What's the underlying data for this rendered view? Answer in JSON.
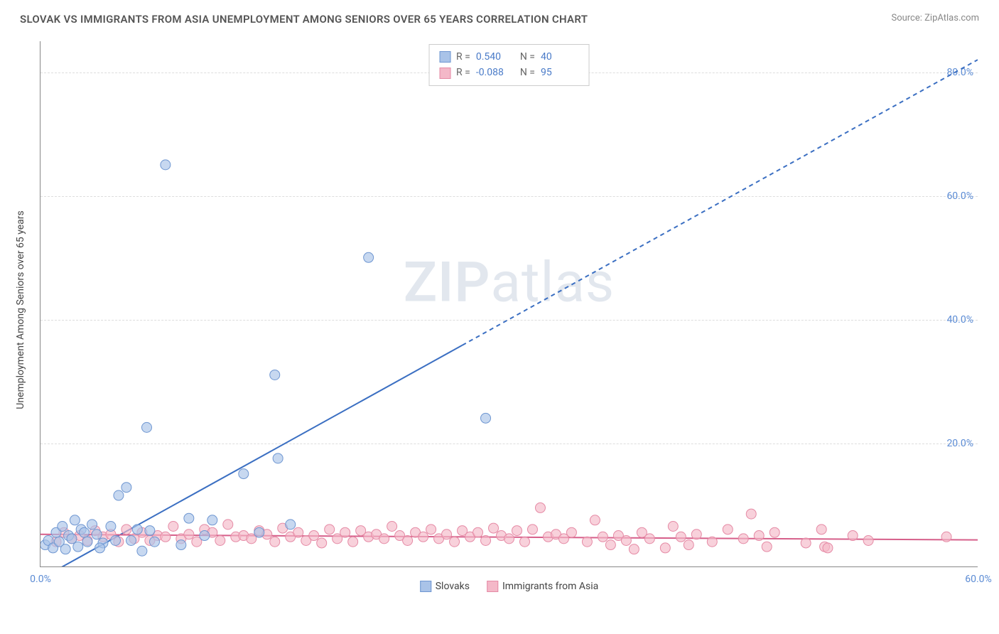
{
  "title": "SLOVAK VS IMMIGRANTS FROM ASIA UNEMPLOYMENT AMONG SENIORS OVER 65 YEARS CORRELATION CHART",
  "source": "Source: ZipAtlas.com",
  "y_axis_title": "Unemployment Among Seniors over 65 years",
  "watermark": {
    "bold": "ZIP",
    "rest": "atlas"
  },
  "chart": {
    "type": "scatter",
    "background_color": "#ffffff",
    "grid_color": "#dddddd",
    "axis_color": "#888888",
    "xlim": [
      0,
      60
    ],
    "ylim": [
      0,
      85
    ],
    "x_ticks": [
      {
        "v": 0,
        "l": "0.0%"
      },
      {
        "v": 60,
        "l": "60.0%"
      }
    ],
    "y_ticks": [
      {
        "v": 20,
        "l": "20.0%"
      },
      {
        "v": 40,
        "l": "40.0%"
      },
      {
        "v": 60,
        "l": "60.0%"
      },
      {
        "v": 80,
        "l": "80.0%"
      }
    ],
    "series": [
      {
        "name": "Slovaks",
        "color_fill": "#a9c3e8",
        "color_stroke": "#6e96d1",
        "marker_r": 7,
        "trend": {
          "type": "line",
          "x1": 0,
          "y1": -2,
          "x2": 60,
          "y2": 82,
          "solid_until_x": 27,
          "color": "#3b6fc2",
          "width": 2
        },
        "stats": {
          "R": "0.540",
          "N": "40"
        },
        "points": [
          [
            0.3,
            3.5
          ],
          [
            0.5,
            4.2
          ],
          [
            0.8,
            3.0
          ],
          [
            1.0,
            5.5
          ],
          [
            1.2,
            4.0
          ],
          [
            1.4,
            6.5
          ],
          [
            1.6,
            2.8
          ],
          [
            1.8,
            5.0
          ],
          [
            2.0,
            4.5
          ],
          [
            2.2,
            7.5
          ],
          [
            2.4,
            3.2
          ],
          [
            2.6,
            6.0
          ],
          [
            2.8,
            5.5
          ],
          [
            3.0,
            4.0
          ],
          [
            3.3,
            6.8
          ],
          [
            3.6,
            5.2
          ],
          [
            4.0,
            3.8
          ],
          [
            4.5,
            6.5
          ],
          [
            5.0,
            11.5
          ],
          [
            5.5,
            12.8
          ],
          [
            5.8,
            4.2
          ],
          [
            6.2,
            6.0
          ],
          [
            6.5,
            2.5
          ],
          [
            6.8,
            22.5
          ],
          [
            7.0,
            5.8
          ],
          [
            7.3,
            4.0
          ],
          [
            8.0,
            65.0
          ],
          [
            9.0,
            3.5
          ],
          [
            9.5,
            7.8
          ],
          [
            10.5,
            5.0
          ],
          [
            11.0,
            7.5
          ],
          [
            13.0,
            15.0
          ],
          [
            14.0,
            5.5
          ],
          [
            15.0,
            31.0
          ],
          [
            15.2,
            17.5
          ],
          [
            16.0,
            6.8
          ],
          [
            21.0,
            50.0
          ],
          [
            28.5,
            24.0
          ],
          [
            4.8,
            4.2
          ],
          [
            3.8,
            3.0
          ]
        ]
      },
      {
        "name": "Immigrants from Asia",
        "color_fill": "#f4b8c8",
        "color_stroke": "#e58aa5",
        "marker_r": 7,
        "trend": {
          "type": "line",
          "x1": 0,
          "y1": 5.2,
          "x2": 60,
          "y2": 4.3,
          "color": "#d65f8a",
          "width": 2
        },
        "stats": {
          "R": "-0.088",
          "N": "95"
        },
        "points": [
          [
            1.0,
            4.0
          ],
          [
            1.5,
            5.5
          ],
          [
            2.0,
            4.5
          ],
          [
            2.5,
            5.0
          ],
          [
            3.0,
            4.2
          ],
          [
            3.5,
            5.8
          ],
          [
            4.0,
            4.8
          ],
          [
            4.5,
            5.2
          ],
          [
            5.0,
            4.0
          ],
          [
            5.5,
            6.0
          ],
          [
            6.0,
            4.5
          ],
          [
            6.5,
            5.5
          ],
          [
            7.0,
            4.2
          ],
          [
            7.5,
            5.0
          ],
          [
            8.0,
            4.8
          ],
          [
            8.5,
            6.5
          ],
          [
            9.0,
            4.5
          ],
          [
            9.5,
            5.2
          ],
          [
            10.0,
            4.0
          ],
          [
            10.5,
            6.0
          ],
          [
            11.0,
            5.5
          ],
          [
            11.5,
            4.2
          ],
          [
            12.0,
            6.8
          ],
          [
            12.5,
            4.8
          ],
          [
            13.0,
            5.0
          ],
          [
            13.5,
            4.5
          ],
          [
            14.0,
            5.8
          ],
          [
            14.5,
            5.2
          ],
          [
            15.0,
            4.0
          ],
          [
            15.5,
            6.2
          ],
          [
            16.0,
            4.8
          ],
          [
            16.5,
            5.5
          ],
          [
            17.0,
            4.2
          ],
          [
            17.5,
            5.0
          ],
          [
            18.0,
            3.8
          ],
          [
            18.5,
            6.0
          ],
          [
            19.0,
            4.5
          ],
          [
            19.5,
            5.5
          ],
          [
            20.0,
            4.0
          ],
          [
            20.5,
            5.8
          ],
          [
            21.0,
            4.8
          ],
          [
            21.5,
            5.2
          ],
          [
            22.0,
            4.5
          ],
          [
            22.5,
            6.5
          ],
          [
            23.0,
            5.0
          ],
          [
            23.5,
            4.2
          ],
          [
            24.0,
            5.5
          ],
          [
            24.5,
            4.8
          ],
          [
            25.0,
            6.0
          ],
          [
            25.5,
            4.5
          ],
          [
            26.0,
            5.2
          ],
          [
            26.5,
            4.0
          ],
          [
            27.0,
            5.8
          ],
          [
            27.5,
            4.8
          ],
          [
            28.0,
            5.5
          ],
          [
            28.5,
            4.2
          ],
          [
            29.0,
            6.2
          ],
          [
            29.5,
            5.0
          ],
          [
            30.0,
            4.5
          ],
          [
            30.5,
            5.8
          ],
          [
            31.0,
            4.0
          ],
          [
            31.5,
            6.0
          ],
          [
            32.0,
            9.5
          ],
          [
            32.5,
            4.8
          ],
          [
            33.0,
            5.2
          ],
          [
            33.5,
            4.5
          ],
          [
            34.0,
            5.5
          ],
          [
            35.0,
            4.0
          ],
          [
            35.5,
            7.5
          ],
          [
            36.0,
            4.8
          ],
          [
            36.5,
            3.5
          ],
          [
            37.0,
            5.0
          ],
          [
            37.5,
            4.2
          ],
          [
            38.0,
            2.8
          ],
          [
            38.5,
            5.5
          ],
          [
            39.0,
            4.5
          ],
          [
            40.0,
            3.0
          ],
          [
            40.5,
            6.5
          ],
          [
            41.0,
            4.8
          ],
          [
            41.5,
            3.5
          ],
          [
            42.0,
            5.2
          ],
          [
            43.0,
            4.0
          ],
          [
            44.0,
            6.0
          ],
          [
            45.0,
            4.5
          ],
          [
            45.5,
            8.5
          ],
          [
            46.0,
            5.0
          ],
          [
            46.5,
            3.2
          ],
          [
            47.0,
            5.5
          ],
          [
            49.0,
            3.8
          ],
          [
            50.0,
            6.0
          ],
          [
            50.2,
            3.2
          ],
          [
            50.4,
            3.0
          ],
          [
            52.0,
            5.0
          ],
          [
            53.0,
            4.2
          ],
          [
            58.0,
            4.8
          ]
        ]
      }
    ],
    "legend": [
      {
        "label": "Slovaks",
        "fill": "#a9c3e8",
        "stroke": "#6e96d1"
      },
      {
        "label": "Immigrants from Asia",
        "fill": "#f4b8c8",
        "stroke": "#e58aa5"
      }
    ]
  }
}
